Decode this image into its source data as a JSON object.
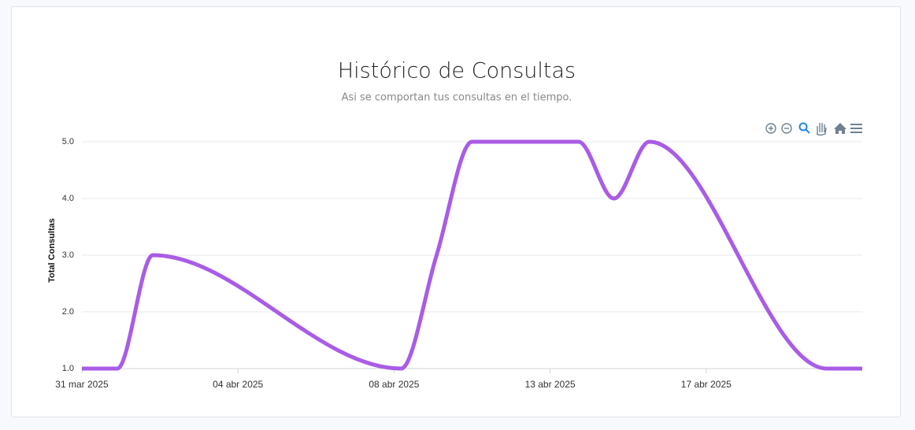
{
  "chart_data": {
    "type": "line",
    "title": "Histórico de Consultas",
    "subtitle": "Asi se comportan tus consultas en el tiempo.",
    "y_label": "Total Consultas",
    "x": [
      0,
      1,
      2,
      9,
      10,
      11,
      14,
      15,
      16,
      21,
      22
    ],
    "series": [
      {
        "name": "Consultas",
        "color": "#a95ce6",
        "values": [
          1,
          1,
          3,
          1,
          3,
          5,
          5,
          4,
          5,
          1,
          1
        ]
      }
    ],
    "xlim": [
      0,
      22
    ],
    "xticks": [
      {
        "value": 0,
        "label": "31 mar 2025"
      },
      {
        "value": 4.4,
        "label": "04 abr 2025"
      },
      {
        "value": 8.8,
        "label": "08 abr 2025"
      },
      {
        "value": 13.2,
        "label": "13 abr 2025"
      },
      {
        "value": 17.6,
        "label": "17 abr 2025"
      }
    ],
    "ylim": [
      1,
      5
    ],
    "yticks": [
      {
        "value": 1,
        "label": "1.0"
      },
      {
        "value": 2,
        "label": "2.0"
      },
      {
        "value": 3,
        "label": "3.0"
      },
      {
        "value": 4,
        "label": "4.0"
      },
      {
        "value": 5,
        "label": "5.0"
      }
    ],
    "grid": true
  }
}
